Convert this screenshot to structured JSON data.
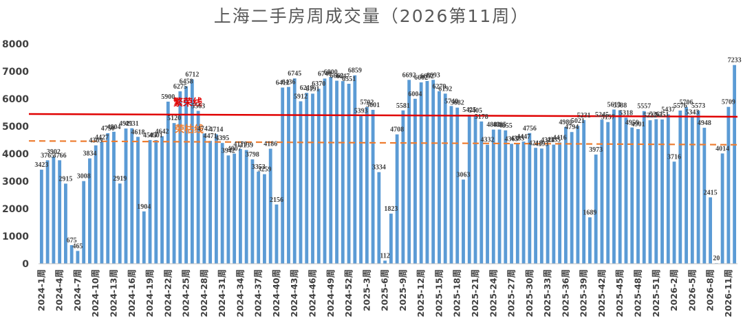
{
  "chart_data": {
    "type": "bar",
    "title": "上海二手房周成交量（2026第11周）",
    "ylim": [
      0,
      8000
    ],
    "yticks": [
      0,
      1000,
      2000,
      3000,
      4000,
      5000,
      6000,
      7000,
      8000
    ],
    "grid": false,
    "bar_color": "#5B9BD5",
    "xtick_labels": [
      "2024-1周",
      "2024-4周",
      "2024-7周",
      "2024-10周",
      "2024-13周",
      "2024-16周",
      "2024-19周",
      "2024-22周",
      "2024-25周",
      "2024-28周",
      "2024-31周",
      "2024-34周",
      "2024-37周",
      "2024-40周",
      "2024-43周",
      "2024-46周",
      "2024-49周",
      "2024-52周",
      "2025-3周",
      "2025-6周",
      "2025-9周",
      "2025-12周",
      "2025-15周",
      "2025-18周",
      "2025-21周",
      "2025-24周",
      "2025-27周",
      "2025-30周",
      "2025-33周",
      "2025-36周",
      "2025-39周",
      "2025-42周",
      "2025-45周",
      "2025-48周",
      "2025-51周",
      "2026-2周",
      "2026-5周",
      "2026-8周",
      "2026-11周"
    ],
    "values": [
      3423,
      3765,
      3902,
      3766,
      2915,
      675,
      465,
      3008,
      3834,
      4309,
      4427,
      4750,
      4804,
      2919,
      4921,
      4931,
      4618,
      1904,
      4503,
      4501,
      4642,
      5900,
      5120,
      6275,
      6458,
      6712,
      5563,
      4742,
      4471,
      4714,
      4395,
      3942,
      4007,
      4179,
      4139,
      3798,
      3353,
      3259,
      4186,
      2156,
      6412,
      6436,
      6745,
      5912,
      6219,
      6191,
      6370,
      6740,
      6800,
      6662,
      6647,
      6551,
      6859,
      5393,
      5702,
      5601,
      3334,
      112,
      1823,
      4708,
      5581,
      6692,
      6004,
      6602,
      6652,
      6693,
      6279,
      6192,
      5740,
      5682,
      3063,
      5425,
      5405,
      5178,
      4332,
      4882,
      4885,
      4855,
      4365,
      4385,
      4447,
      4756,
      4218,
      4193,
      4328,
      4335,
      4416,
      4980,
      4794,
      5021,
      5231,
      1689,
      3973,
      5245,
      5157,
      5613,
      5588,
      5318,
      4959,
      4901,
      5557,
      5222,
      5261,
      5251,
      5437,
      3716,
      5576,
      5706,
      5343,
      5573,
      4948,
      2415,
      20,
      4014,
      5709,
      7233
    ],
    "value_labels_shown": [
      "3423",
      "3765",
      "3902",
      "3766",
      "2915",
      "675",
      "465",
      "3008",
      "3834",
      "4309",
      "4427",
      "4750",
      "4804",
      "2919",
      "4921",
      "4931",
      "4618",
      "1904",
      "4503",
      "4501",
      "4642",
      "5900",
      "5120",
      "6275",
      "6458",
      "6712",
      "5563",
      "4742",
      "4471",
      "4714",
      "4395",
      "3942",
      "4007",
      "4179",
      "4139",
      "3798",
      "3353",
      "3259",
      "4186",
      "2156",
      "6412",
      "6436",
      "6745",
      "5912",
      "6219",
      "6191",
      "6370",
      "6740",
      "6800",
      "6662",
      "6647",
      "6551",
      "6859",
      "5393",
      "5702",
      "5601",
      "3334",
      "112",
      "1823",
      "4708",
      "5581",
      "6692",
      "6004",
      "6602",
      "6652",
      "6693",
      "6279",
      "6192",
      "5740",
      "5682",
      "3063",
      "5425",
      "5405",
      "5178",
      "4332",
      "4882",
      "4885",
      "4855",
      "4365",
      "4385",
      "4447",
      "4756",
      "4218",
      "4193",
      "4328",
      "4335",
      "4416",
      "4980",
      "4794",
      "5021",
      "5231",
      "1689",
      "3973",
      "5245",
      "5157",
      "5613",
      "5588",
      "5318",
      "4959",
      "4901",
      "5557",
      "5222",
      "5261",
      "5251",
      "5437",
      "3716",
      "5576",
      "5706",
      "5343",
      "5573",
      "4948",
      "2415",
      "20",
      "4014",
      "5709",
      "7233"
    ],
    "reference_lines": [
      {
        "name": "繁荣线",
        "y_start": 5450,
        "y_end": 5350,
        "color": "#E00000",
        "style": "solid"
      },
      {
        "name": "荣枯线",
        "y_start": 4470,
        "y_end": 4330,
        "color": "#ED7D31",
        "style": "dashed"
      }
    ]
  }
}
